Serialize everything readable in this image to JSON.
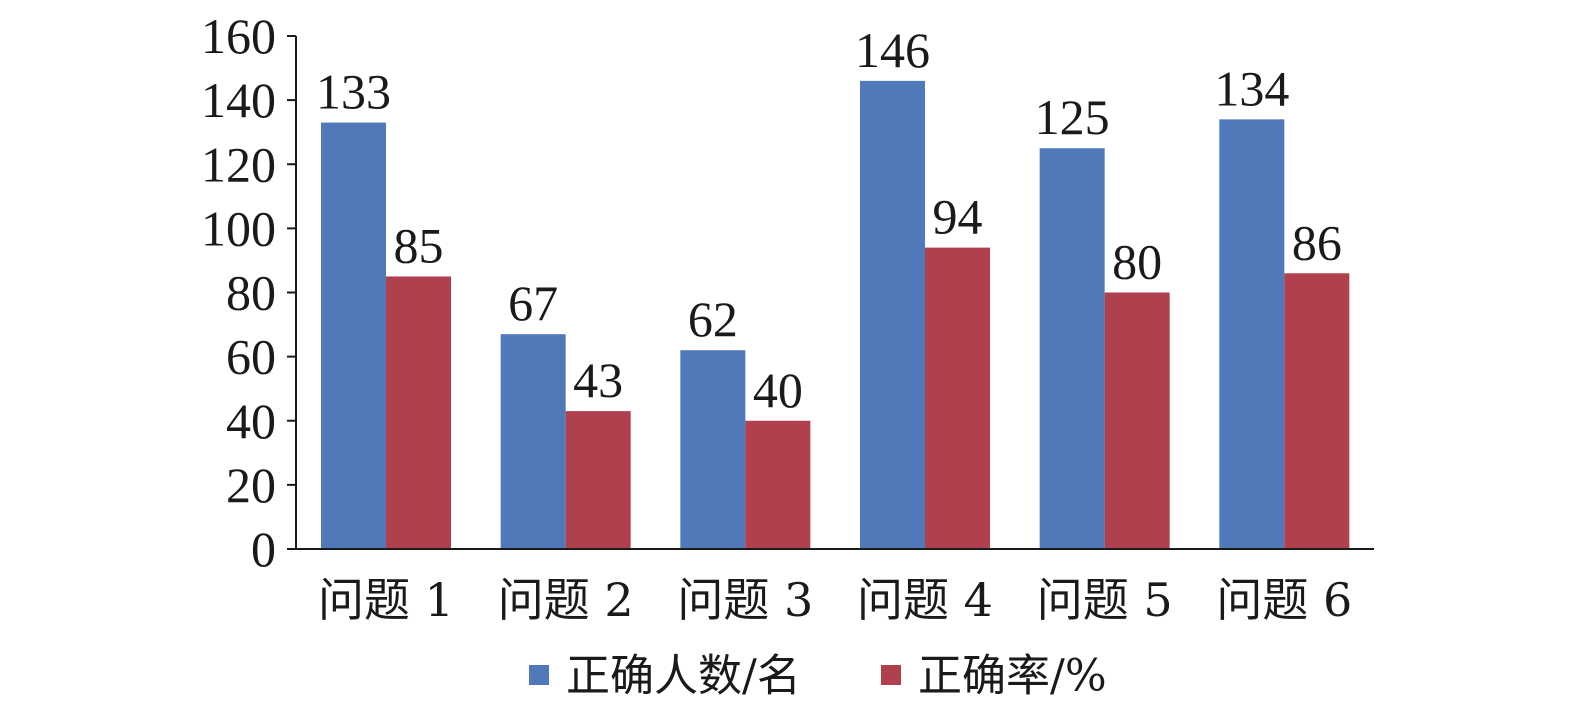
{
  "chart_data": {
    "type": "bar",
    "title": "",
    "xlabel": "",
    "ylabel": "",
    "categories": [
      "问题 1",
      "问题 2",
      "问题 3",
      "问题 4",
      "问题 5",
      "问题 6"
    ],
    "series": [
      {
        "name": "正确人数/名",
        "values": [
          133,
          67,
          62,
          146,
          125,
          134
        ],
        "color": "#4F79B9"
      },
      {
        "name": "正确率/%",
        "values": [
          85,
          43,
          40,
          94,
          80,
          86
        ],
        "color": "#B0404E"
      }
    ],
    "ylim": [
      0,
      160
    ],
    "yticks": [
      0,
      20,
      40,
      60,
      80,
      100,
      120,
      140,
      160
    ],
    "grid": false,
    "legend": "bottom",
    "data_labels": true
  }
}
